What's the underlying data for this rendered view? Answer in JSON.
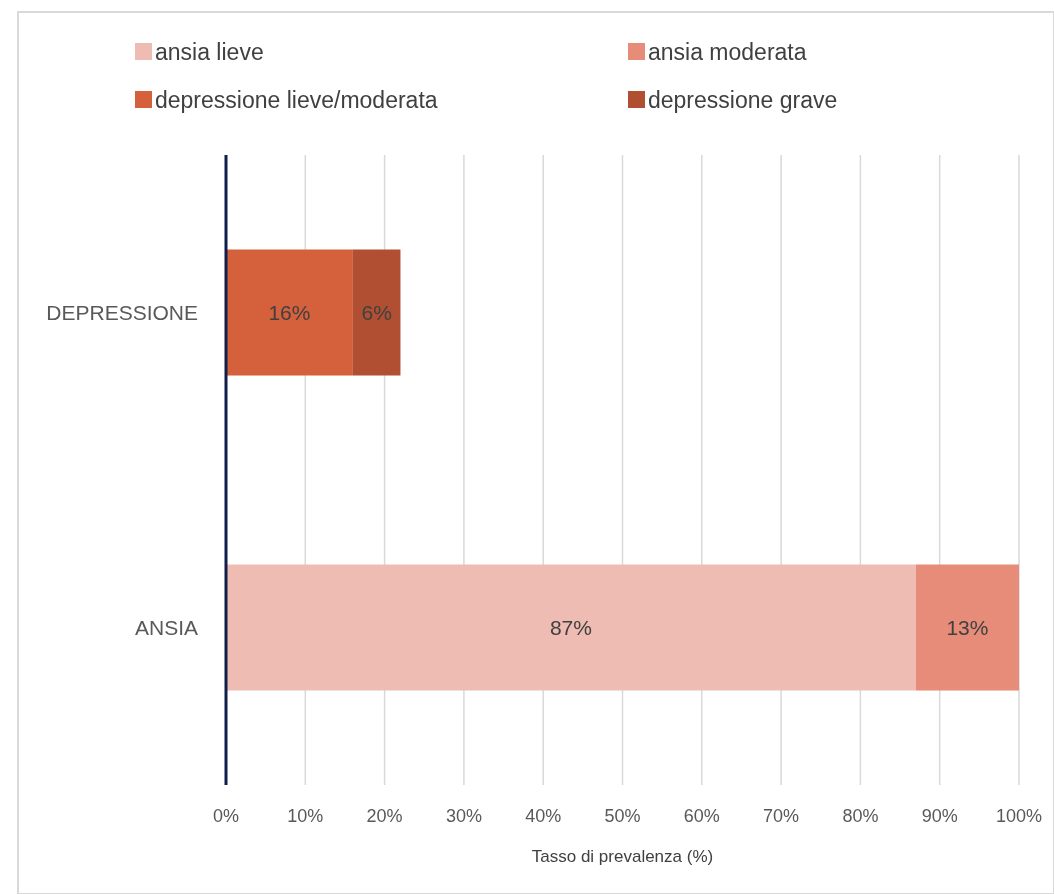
{
  "chart_data": {
    "type": "bar",
    "orientation": "horizontal",
    "stacked": true,
    "xlabel": "Tasso di prevalenza (%)",
    "categories": [
      "DEPRESSIONE",
      "ANSIA"
    ],
    "series": [
      {
        "name": "ansia lieve",
        "color": "#eebcb2",
        "values": [
          null,
          87
        ],
        "value_labels": [
          null,
          "87%"
        ]
      },
      {
        "name": "ansia moderata",
        "color": "#e68c78",
        "values": [
          null,
          13
        ],
        "value_labels": [
          null,
          "13%"
        ]
      },
      {
        "name": "depressione lieve/moderata",
        "color": "#d4603c",
        "values": [
          16,
          null
        ],
        "value_labels": [
          "16%",
          null
        ]
      },
      {
        "name": "depressione grave",
        "color": "#b04f32",
        "values": [
          6,
          null
        ],
        "value_labels": [
          "6%",
          null
        ]
      }
    ],
    "xlim": [
      0,
      100
    ],
    "xticks": [
      {
        "value": 0,
        "label": "0%"
      },
      {
        "value": 10,
        "label": "10%"
      },
      {
        "value": 20,
        "label": "20%"
      },
      {
        "value": 30,
        "label": "30%"
      },
      {
        "value": 40,
        "label": "40%"
      },
      {
        "value": 50,
        "label": "50%"
      },
      {
        "value": 60,
        "label": "60%"
      },
      {
        "value": 70,
        "label": "70%"
      },
      {
        "value": 80,
        "label": "80%"
      },
      {
        "value": 90,
        "label": "90%"
      },
      {
        "value": 100,
        "label": "100%"
      }
    ],
    "grid": "x",
    "legend": "top"
  }
}
